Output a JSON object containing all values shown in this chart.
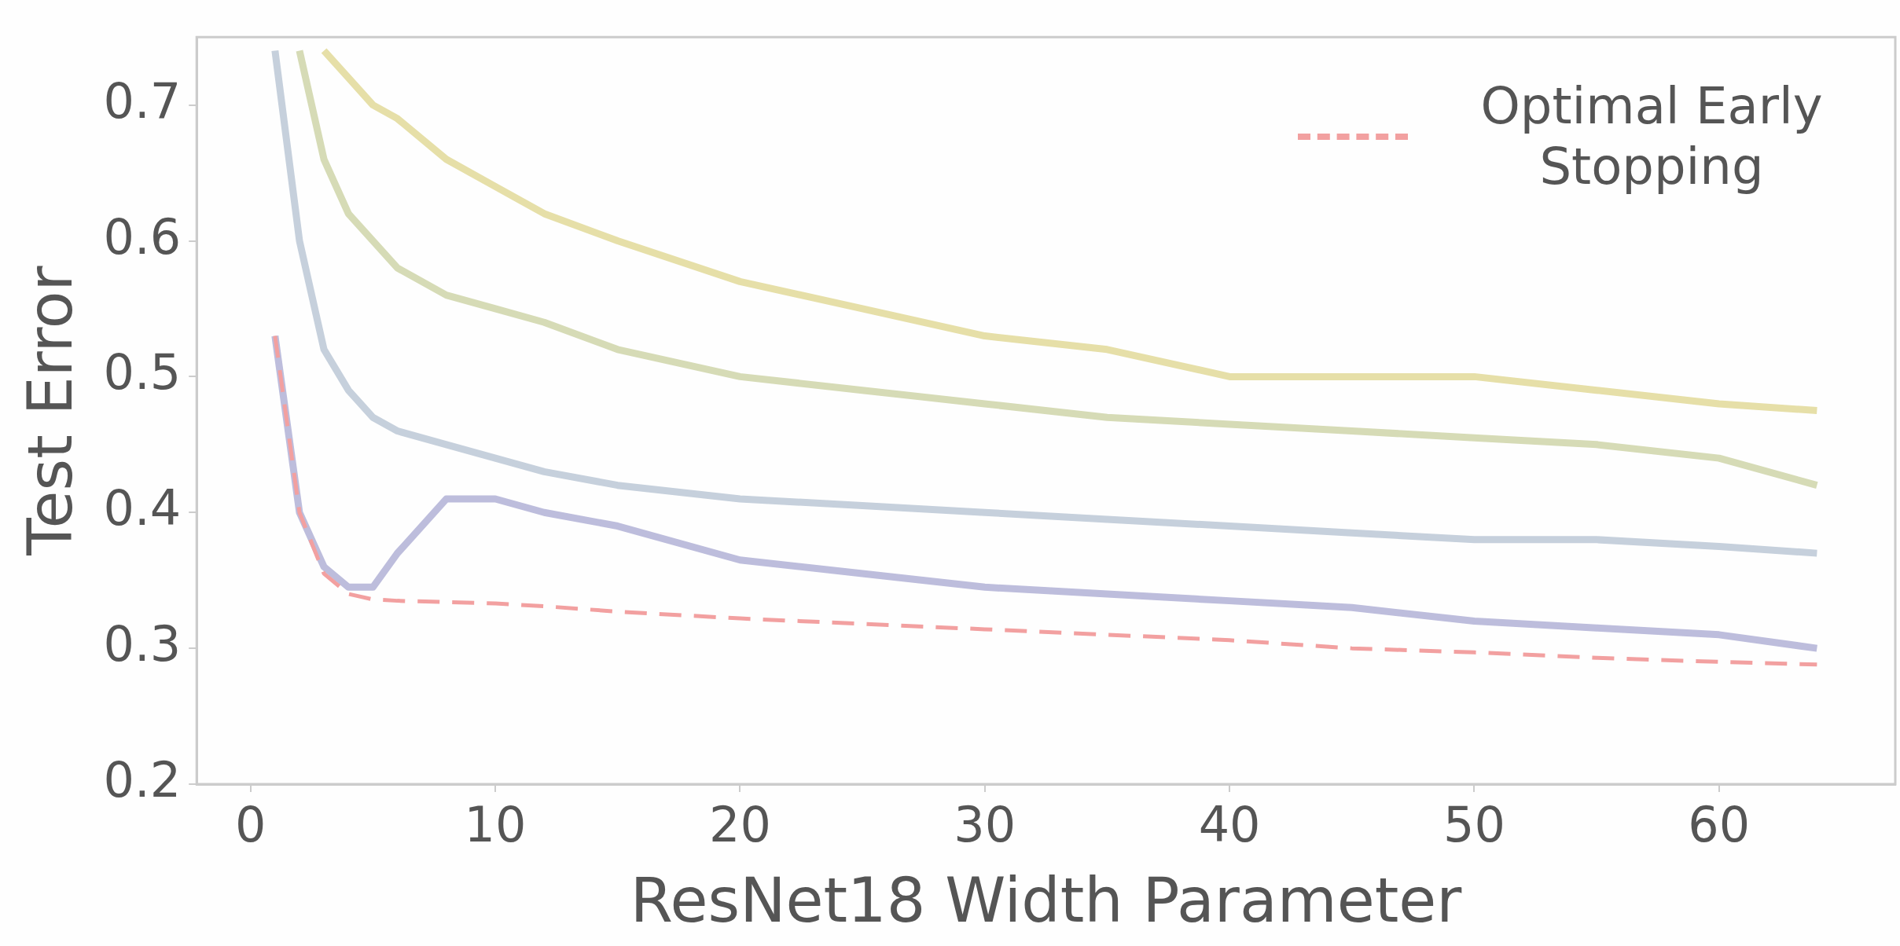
{
  "chart_data": {
    "type": "line",
    "xlabel": "ResNet18 Width Parameter",
    "ylabel": "Test Error",
    "xlim": [
      -2.2,
      67.2
    ],
    "ylim": [
      0.2,
      0.75
    ],
    "xticks": [
      0,
      10,
      20,
      30,
      40,
      50,
      60
    ],
    "yticks": [
      0.2,
      0.3,
      0.4,
      0.5,
      0.6,
      0.7
    ],
    "grid": false,
    "legend": "top right",
    "marker": "none",
    "x": [
      1,
      2,
      3,
      4,
      5,
      6,
      8,
      10,
      12,
      15,
      20,
      25,
      30,
      35,
      40,
      45,
      50,
      55,
      60,
      64
    ],
    "series": [
      {
        "color": "#e6dfa8",
        "values": [
          null,
          null,
          0.74,
          0.72,
          0.7,
          0.69,
          0.66,
          0.64,
          0.62,
          0.6,
          0.57,
          0.55,
          0.53,
          0.52,
          0.5,
          0.5,
          0.5,
          0.49,
          0.48,
          0.475
        ]
      },
      {
        "color": "#d6dbb6",
        "values": [
          null,
          0.74,
          0.66,
          0.62,
          0.6,
          0.58,
          0.56,
          0.55,
          0.54,
          0.52,
          0.5,
          0.49,
          0.48,
          0.47,
          0.465,
          0.46,
          0.455,
          0.45,
          0.44,
          0.42
        ]
      },
      {
        "color": "#c6d0dc",
        "values": [
          0.74,
          0.6,
          0.52,
          0.49,
          0.47,
          0.46,
          0.45,
          0.44,
          0.43,
          0.42,
          0.41,
          0.405,
          0.4,
          0.395,
          0.39,
          0.385,
          0.38,
          0.38,
          0.375,
          0.37
        ]
      },
      {
        "color": "#bdbddc",
        "values": [
          0.53,
          0.4,
          0.36,
          0.345,
          0.345,
          0.37,
          0.41,
          0.41,
          0.4,
          0.39,
          0.365,
          0.355,
          0.345,
          0.34,
          0.335,
          0.33,
          0.32,
          0.315,
          0.31,
          0.3
        ]
      },
      {
        "name": "Optimal Early Stopping",
        "color": "#f2a0a0",
        "line_style": "dashed",
        "values": [
          0.53,
          0.4,
          0.355,
          0.34,
          0.336,
          0.335,
          0.334,
          0.333,
          0.331,
          0.327,
          0.322,
          0.318,
          0.314,
          0.31,
          0.306,
          0.3,
          0.297,
          0.293,
          0.29,
          0.288
        ]
      }
    ]
  }
}
